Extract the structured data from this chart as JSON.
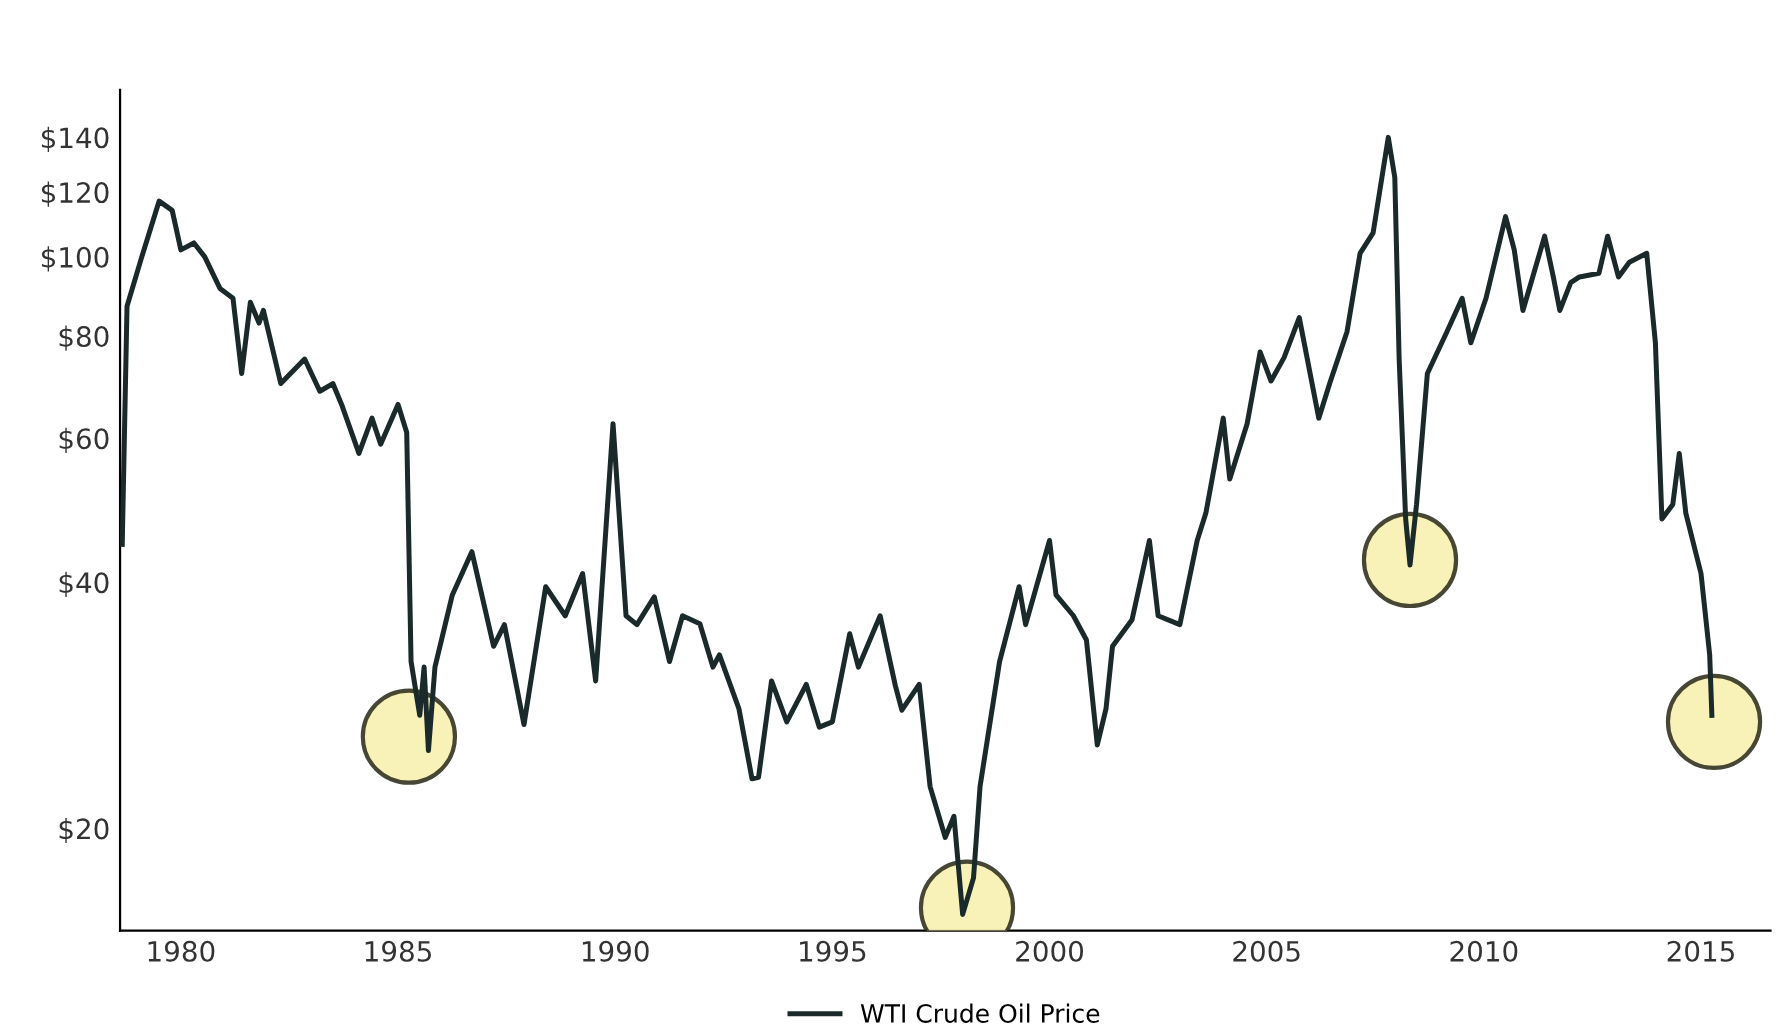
{
  "chart_data": {
    "type": "line",
    "log": "y",
    "legend": "bottom",
    "grid": false,
    "xlim": [
      1978.6,
      2016.6
    ],
    "ylim": [
      15,
      160
    ],
    "xticks": [
      1980,
      1985,
      1990,
      1995,
      2000,
      2005,
      2010,
      2015
    ],
    "yticks": [
      {
        "value": 20,
        "label": "$20"
      },
      {
        "value": 40,
        "label": "$40"
      },
      {
        "value": 60,
        "label": "$60"
      },
      {
        "value": 80,
        "label": "$80"
      },
      {
        "value": 100,
        "label": "$100"
      },
      {
        "value": 120,
        "label": "$120"
      },
      {
        "value": 140,
        "label": "$140"
      }
    ],
    "series": [
      {
        "name": "WTI Crude Oil Price",
        "color": "#1a2a2a",
        "marker": "none",
        "line_style": "solid",
        "x": [
          1978.65,
          1978.76,
          1979.1,
          1979.5,
          1979.8,
          1980.0,
          1980.3,
          1980.55,
          1980.9,
          1981.2,
          1981.4,
          1981.6,
          1981.8,
          1981.9,
          1982.3,
          1982.85,
          1983.2,
          1983.5,
          1983.7,
          1984.1,
          1984.4,
          1984.6,
          1985.0,
          1985.2,
          1985.3,
          1985.5,
          1985.6,
          1985.7,
          1985.85,
          1986.25,
          1986.7,
          1987.2,
          1987.45,
          1987.9,
          1988.4,
          1988.85,
          1989.25,
          1989.55,
          1989.95,
          1990.25,
          1990.5,
          1990.9,
          1991.25,
          1991.55,
          1991.95,
          1992.25,
          1992.4,
          1992.85,
          1993.15,
          1993.3,
          1993.6,
          1993.95,
          1994.4,
          1994.7,
          1995.0,
          1995.4,
          1995.6,
          1996.1,
          1996.45,
          1996.6,
          1997.0,
          1997.25,
          1997.6,
          1997.8,
          1998.0,
          1998.25,
          1998.4,
          1998.85,
          1999.3,
          1999.45,
          2000.0,
          2000.15,
          2000.55,
          2000.85,
          2001.1,
          2001.3,
          2001.45,
          2001.9,
          2002.3,
          2002.5,
          2003.0,
          2003.4,
          2003.6,
          2004.0,
          2004.15,
          2004.55,
          2004.85,
          2005.1,
          2005.4,
          2005.75,
          2006.0,
          2006.2,
          2006.45,
          2006.85,
          2007.15,
          2007.45,
          2007.8,
          2007.95,
          2008.05,
          2008.2,
          2008.3,
          2008.45,
          2008.7,
          2009.15,
          2009.5,
          2009.7,
          2010.05,
          2010.5,
          2010.7,
          2010.9,
          2011.4,
          2011.6,
          2011.75,
          2012.0,
          2012.2,
          2012.65,
          2012.85,
          2013.1,
          2013.35,
          2013.75,
          2013.95,
          2014.1,
          2014.35,
          2014.5,
          2014.65,
          2015.0,
          2015.2,
          2015.25
        ],
        "values": [
          44.5,
          87,
          100,
          117,
          114,
          102,
          104,
          100,
          91.5,
          89,
          72,
          88,
          83,
          86,
          70,
          75,
          68.5,
          70,
          66,
          57.5,
          63.5,
          59,
          66,
          61,
          32,
          27.5,
          31.5,
          24.9,
          31.5,
          38.6,
          43.6,
          33.4,
          35.5,
          26.8,
          39.5,
          36.4,
          41,
          30.3,
          62.5,
          36.4,
          35.5,
          38.4,
          32,
          36.4,
          35.6,
          31.5,
          32.6,
          28,
          23,
          23.1,
          30.3,
          27,
          30,
          26.6,
          27,
          34.6,
          31.5,
          36.4,
          29.9,
          27.9,
          30,
          22.5,
          19.5,
          20.7,
          15.7,
          17.4,
          22.5,
          32,
          39.5,
          35.5,
          45,
          38.6,
          36.4,
          34,
          25.3,
          28,
          33.4,
          36,
          45,
          36.4,
          35.5,
          45,
          48.6,
          63.5,
          53.5,
          62.5,
          76.5,
          70.5,
          75.3,
          84.3,
          72,
          63.5,
          70,
          81,
          101,
          107,
          140,
          125,
          75,
          47.8,
          42,
          49.8,
          72,
          81,
          89,
          78.5,
          89,
          112,
          102,
          86,
          106,
          94.5,
          86,
          93,
          94.5,
          95.5,
          106,
          94.5,
          98.5,
          101,
          78.5,
          47.8,
          49.8,
          57.5,
          48.6,
          41,
          32.6,
          27.5
        ]
      },
      {
        "type": "scatter",
        "color": "#f7f0b0",
        "marker": "circle",
        "x": [
          1985.25,
          1998.1,
          2008.3,
          2015.3
        ],
        "values": [
          25.9,
          16.0,
          42.6,
          27.0
        ]
      }
    ]
  }
}
